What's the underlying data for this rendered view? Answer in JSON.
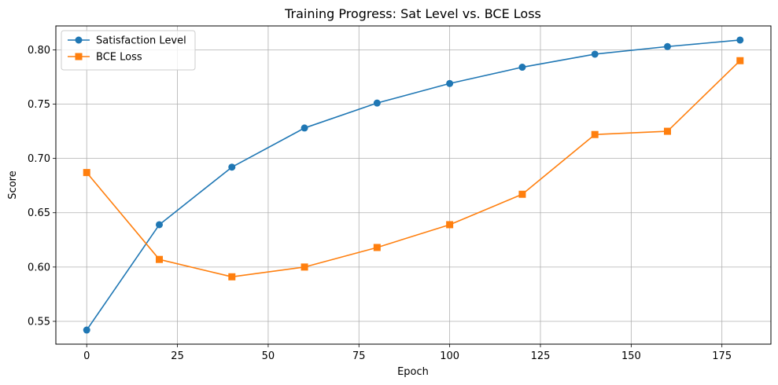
{
  "chart_data": {
    "type": "line",
    "title": "Training Progress: Sat Level vs. BCE Loss",
    "xlabel": "Epoch",
    "ylabel": "Score",
    "x": [
      0,
      20,
      40,
      60,
      80,
      100,
      120,
      140,
      160,
      180
    ],
    "series": [
      {
        "name": "Satisfaction Level",
        "color": "#1f77b4",
        "marker": "circle",
        "values": [
          0.542,
          0.639,
          0.692,
          0.728,
          0.751,
          0.769,
          0.784,
          0.796,
          0.803,
          0.809
        ]
      },
      {
        "name": "BCE Loss",
        "color": "#ff7f0e",
        "marker": "square",
        "values": [
          0.687,
          0.607,
          0.591,
          0.6,
          0.618,
          0.639,
          0.667,
          0.722,
          0.725,
          0.79
        ]
      }
    ],
    "xlim": [
      -8.5,
      188.5
    ],
    "ylim": [
      0.529,
      0.822
    ],
    "xticks": [
      0,
      25,
      50,
      75,
      100,
      125,
      150,
      175
    ],
    "xtick_labels": [
      "0",
      "25",
      "50",
      "75",
      "100",
      "125",
      "150",
      "175"
    ],
    "yticks": [
      0.55,
      0.6,
      0.65,
      0.7,
      0.75,
      0.8
    ],
    "ytick_labels": [
      "0.55",
      "0.60",
      "0.65",
      "0.70",
      "0.75",
      "0.80"
    ],
    "grid": true,
    "legend_position": "top-left"
  }
}
